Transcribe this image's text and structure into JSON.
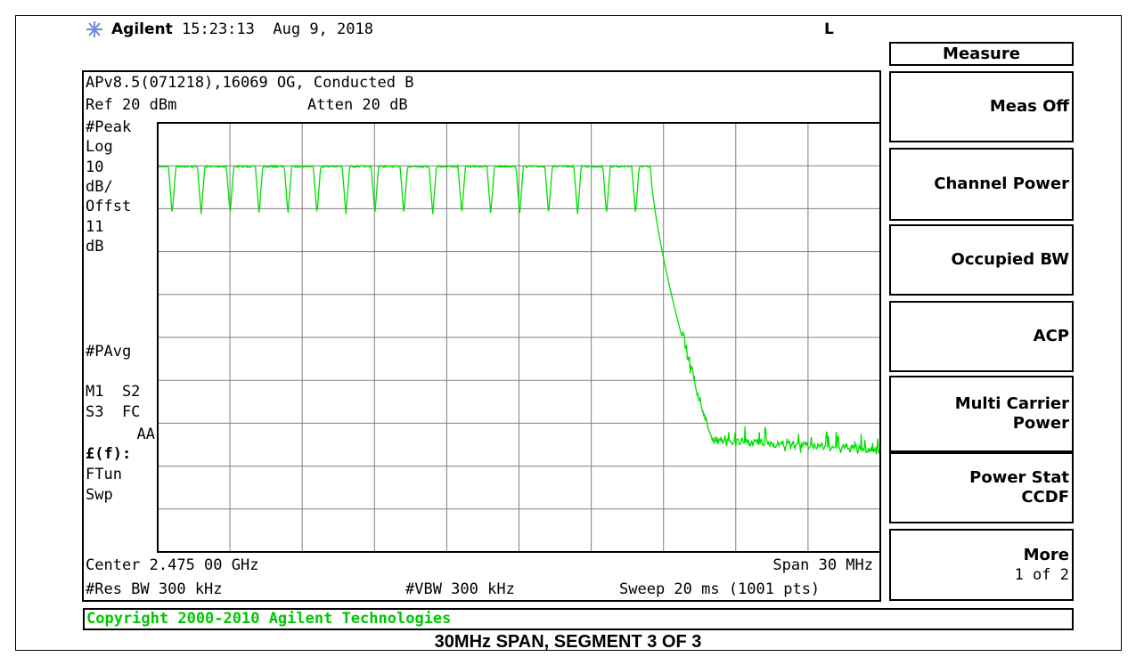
{
  "header": {
    "brand": "Agilent",
    "time": "15:23:13",
    "date": "Aug 9, 2018",
    "indicator": "L"
  },
  "panel": {
    "title": "Measure",
    "softkeys": [
      [
        "Meas Off"
      ],
      [
        "Channel Power"
      ],
      [
        "Occupied BW"
      ],
      [
        "ACP"
      ],
      [
        "Multi Carrier",
        "Power"
      ],
      [
        "Power Stat",
        "CCDF"
      ],
      [
        "More",
        "1 of 2"
      ]
    ]
  },
  "screen": {
    "info": "APv8.5(071218),16069 OG, Conducted B",
    "ref": "Ref 20 dBm",
    "atten": "Atten 20 dB",
    "left_labels": [
      "#Peak",
      "Log",
      "10",
      "dB/",
      "Offst",
      "11",
      "dB",
      "#PAvg",
      "M1  S2",
      "S3  FC",
      "AA",
      "£(f):",
      "FTun",
      "Swp"
    ],
    "center": "Center 2.475 00 GHz",
    "span": "Span 30 MHz",
    "rbw": "#Res BW 300 kHz",
    "vbw": "#VBW 300 kHz",
    "sweep": "Sweep 20 ms (1001 pts)"
  },
  "copyright": "Copyright 2000-2010 Agilent Technologies",
  "caption": "30MHz SPAN, SEGMENT 3 OF 3"
}
